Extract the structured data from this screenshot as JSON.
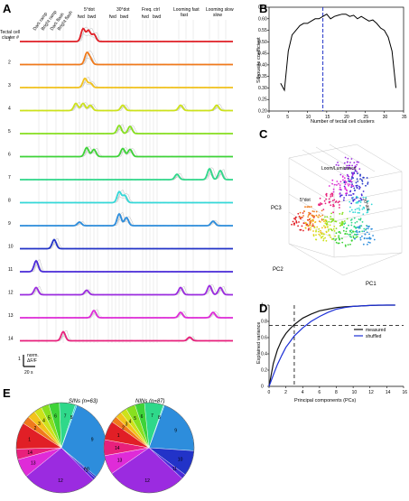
{
  "panel_labels": {
    "a": "A",
    "b": "B",
    "c": "C",
    "d": "D",
    "e": "E"
  },
  "panel_a": {
    "row_header": [
      "Tectal cell",
      "cluster #"
    ],
    "cluster_ids": [
      "1",
      "2",
      "3",
      "4",
      "5",
      "6",
      "7",
      "8",
      "9",
      "10",
      "11",
      "12",
      "13",
      "14"
    ],
    "cluster_colors": [
      "#e11f26",
      "#f07a1c",
      "#f2c21c",
      "#cde21b",
      "#88e020",
      "#3ed338",
      "#2fd88a",
      "#35d8d8",
      "#2d8ddc",
      "#2233c8",
      "#4a2bd9",
      "#9b2be0",
      "#df2bd8",
      "#e8207c"
    ],
    "stimuli": [
      "Dark ramp",
      "Bright ramp",
      "Dark flash",
      "Bright flash",
      "5°dot",
      "30°dot",
      "Freq. ctrl",
      "Looming fast",
      "Looming slow"
    ],
    "direction_labels": [
      "fwd",
      "bwd",
      "fwd",
      "bwd",
      "fwd",
      "bwd"
    ],
    "scalebar_y": [
      "1",
      "norm.",
      "ΔF/F"
    ],
    "scalebar_x": "20 s"
  },
  "panel_b": {
    "chart_data": {
      "type": "line",
      "xlabel": "Number of tectal cell clusters",
      "ylabel": "Silhouette coefficient",
      "xlim": [
        0,
        35
      ],
      "ylim": [
        0.2,
        0.65
      ],
      "xticks": [
        "0",
        "5",
        "10",
        "15",
        "20",
        "25",
        "30",
        "35"
      ],
      "yticks": [
        "0.20",
        "0.25",
        "0.30",
        "0.35",
        "0.40",
        "0.45",
        "0.50",
        "0.55",
        "0.60",
        "0.65"
      ],
      "vline_x": 14,
      "x": [
        3,
        4,
        5,
        6,
        7,
        8,
        9,
        10,
        11,
        12,
        13,
        14,
        15,
        16,
        17,
        18,
        19,
        20,
        21,
        22,
        23,
        24,
        25,
        26,
        27,
        28,
        29,
        30,
        31,
        32,
        33
      ],
      "y": [
        0.32,
        0.29,
        0.46,
        0.53,
        0.55,
        0.57,
        0.58,
        0.58,
        0.59,
        0.6,
        0.6,
        0.61,
        0.62,
        0.6,
        0.61,
        0.615,
        0.62,
        0.62,
        0.61,
        0.615,
        0.6,
        0.61,
        0.6,
        0.59,
        0.595,
        0.58,
        0.56,
        0.55,
        0.52,
        0.46,
        0.3
      ]
    }
  },
  "panel_c": {
    "axes": {
      "x": "PC1",
      "y": "PC2",
      "z": "PC3"
    },
    "annotations": [
      "Loom/Luminance",
      "5°dot",
      "30°dot"
    ]
  },
  "panel_d": {
    "chart_data": {
      "type": "line",
      "xlabel": "Principal components (PCs)",
      "ylabel": "Explained variance",
      "xlim": [
        0,
        16
      ],
      "ylim": [
        0,
        1
      ],
      "xticks": [
        "0",
        "2",
        "4",
        "6",
        "8",
        "10",
        "12",
        "14",
        "16"
      ],
      "yticks": [
        "0",
        "0.2",
        "0.4",
        "0.6",
        "0.8",
        "1"
      ],
      "hline_y": 0.75,
      "vline_x": 3,
      "series": [
        {
          "name": "measured",
          "color": "#111111",
          "x": [
            0,
            0.5,
            1,
            1.5,
            2,
            2.5,
            3,
            4,
            5,
            6,
            7,
            8,
            9,
            10,
            11,
            12,
            13,
            14,
            15
          ],
          "y": [
            0,
            0.28,
            0.45,
            0.57,
            0.65,
            0.71,
            0.76,
            0.84,
            0.89,
            0.93,
            0.95,
            0.97,
            0.98,
            0.985,
            0.99,
            0.995,
            0.998,
            1,
            1
          ]
        },
        {
          "name": "shuffled",
          "color": "#1c2fd6",
          "x": [
            0,
            0.5,
            1,
            1.5,
            2,
            2.5,
            3,
            4,
            5,
            6,
            7,
            8,
            9,
            10,
            11,
            12,
            13,
            14,
            15
          ],
          "y": [
            0,
            0.14,
            0.27,
            0.38,
            0.48,
            0.55,
            0.62,
            0.72,
            0.8,
            0.86,
            0.91,
            0.95,
            0.97,
            0.985,
            0.99,
            0.995,
            1,
            1,
            1
          ]
        }
      ]
    }
  },
  "panel_e": {
    "chart_data": [
      {
        "type": "pie",
        "title": "SINs (n=63)",
        "labels": [
          "1",
          "2",
          "3",
          "4",
          "5",
          "6",
          "7",
          "8",
          "9",
          "10",
          "11",
          "12",
          "13",
          "14"
        ],
        "values": [
          5,
          1.5,
          1.5,
          1.5,
          1.5,
          2,
          3,
          0.3,
          16,
          0.3,
          0.5,
          14,
          3.5,
          2
        ]
      },
      {
        "type": "pie",
        "title": "NINs (n=87)",
        "labels": [
          "1",
          "2",
          "3",
          "4",
          "5",
          "6",
          "7",
          "8",
          "9",
          "10",
          "11",
          "12",
          "13",
          "14"
        ],
        "values": [
          6,
          2,
          2,
          2,
          3,
          3,
          6,
          0.3,
          18,
          8,
          1.5,
          25,
          6,
          5
        ]
      }
    ],
    "wedge_labels": [
      "7",
      "6",
      "5",
      "4",
      "3",
      "2",
      "1",
      "14",
      "13",
      "12",
      "11",
      "10",
      "9"
    ]
  }
}
